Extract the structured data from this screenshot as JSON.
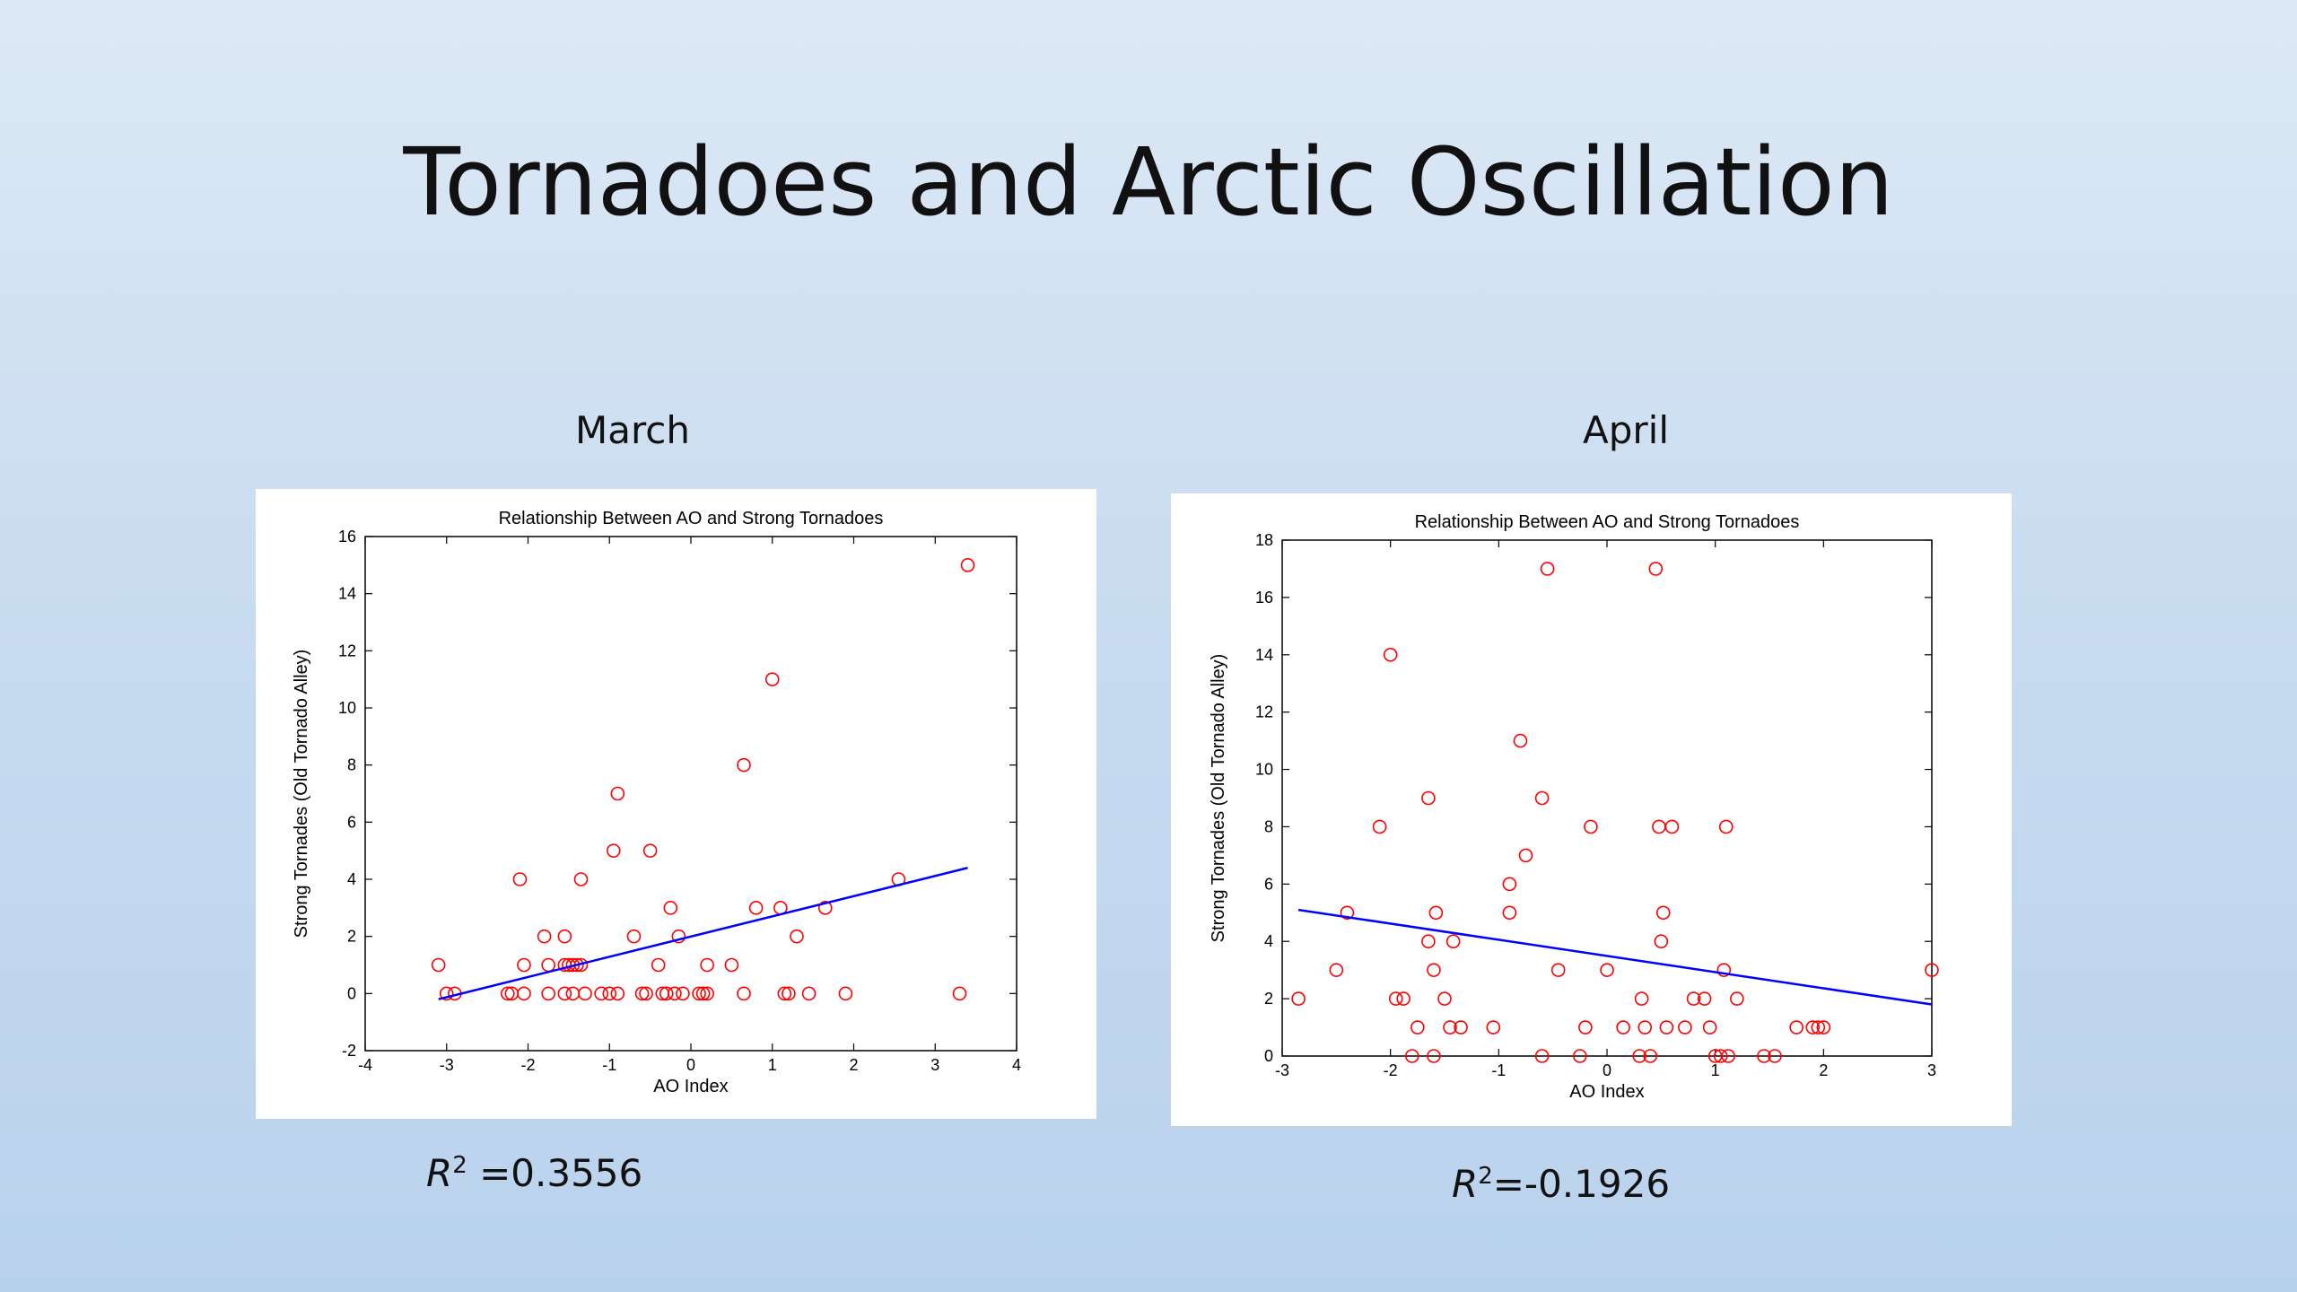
{
  "slide": {
    "title": "Tornadoes and Arctic Oscillation"
  },
  "panels": [
    {
      "label": "March",
      "r2_symbol": "R",
      "r2_exp": "2",
      "r2_value": "=0.3556"
    },
    {
      "label": "April",
      "r2_symbol": "R",
      "r2_exp": "2",
      "r2_value": "=-0.1926"
    }
  ],
  "colors": {
    "points": "#ff0000",
    "trend": "#0000ff",
    "axes": "#000000"
  },
  "chart_data": [
    {
      "type": "scatter",
      "title": "Relationship Between AO and Strong Tornadoes",
      "xlabel": "AO Index",
      "ylabel": "Strong Tornades (Old Tornado Alley)",
      "xlim": [
        -4,
        4
      ],
      "ylim": [
        -2,
        16
      ],
      "xticks": [
        -4,
        -3,
        -2,
        -1,
        0,
        1,
        2,
        3,
        4
      ],
      "yticks": [
        -2,
        0,
        2,
        4,
        6,
        8,
        10,
        12,
        14,
        16
      ],
      "grid": false,
      "series": [
        {
          "marker": "circle",
          "points": [
            [
              -3.1,
              1
            ],
            [
              -3.0,
              0
            ],
            [
              -2.9,
              0
            ],
            [
              -2.25,
              0
            ],
            [
              -2.2,
              0
            ],
            [
              -2.1,
              4
            ],
            [
              -2.05,
              0
            ],
            [
              -2.05,
              1
            ],
            [
              -1.8,
              2
            ],
            [
              -1.75,
              1
            ],
            [
              -1.75,
              0
            ],
            [
              -1.55,
              2
            ],
            [
              -1.55,
              1
            ],
            [
              -1.55,
              0
            ],
            [
              -1.5,
              1
            ],
            [
              -1.45,
              1
            ],
            [
              -1.45,
              0
            ],
            [
              -1.4,
              1
            ],
            [
              -1.35,
              4
            ],
            [
              -1.35,
              1
            ],
            [
              -1.3,
              0
            ],
            [
              -1.1,
              0
            ],
            [
              -1.0,
              0
            ],
            [
              -0.95,
              5
            ],
            [
              -0.9,
              7
            ],
            [
              -0.9,
              0
            ],
            [
              -0.7,
              2
            ],
            [
              -0.6,
              0
            ],
            [
              -0.55,
              0
            ],
            [
              -0.5,
              5
            ],
            [
              -0.4,
              1
            ],
            [
              -0.35,
              0
            ],
            [
              -0.3,
              0
            ],
            [
              -0.25,
              3
            ],
            [
              -0.2,
              0
            ],
            [
              -0.15,
              2
            ],
            [
              -0.1,
              0
            ],
            [
              0.1,
              0
            ],
            [
              0.15,
              0
            ],
            [
              0.2,
              0
            ],
            [
              0.2,
              1
            ],
            [
              0.5,
              1
            ],
            [
              0.65,
              8
            ],
            [
              0.65,
              0
            ],
            [
              0.8,
              3
            ],
            [
              1.0,
              11
            ],
            [
              1.1,
              3
            ],
            [
              1.15,
              0
            ],
            [
              1.2,
              0
            ],
            [
              1.3,
              2
            ],
            [
              1.45,
              0
            ],
            [
              1.65,
              3
            ],
            [
              1.9,
              0
            ],
            [
              2.55,
              4
            ],
            [
              3.3,
              0
            ],
            [
              3.4,
              15
            ]
          ]
        },
        {
          "name": "",
          "kind": "line",
          "points": [
            [
              -3.1,
              -0.2
            ],
            [
              3.4,
              4.4
            ]
          ]
        }
      ]
    },
    {
      "type": "scatter",
      "title": "Relationship Between AO and Strong Tornadoes",
      "xlabel": "AO Index",
      "ylabel": "Strong Tornades (Old Tornado Alley)",
      "xlim": [
        -3,
        3
      ],
      "ylim": [
        0,
        18
      ],
      "xticks": [
        -3,
        -2,
        -1,
        0,
        1,
        2,
        3
      ],
      "yticks": [
        0,
        2,
        4,
        6,
        8,
        10,
        12,
        14,
        16,
        18
      ],
      "grid": false,
      "series": [
        {
          "marker": "circle",
          "points": [
            [
              -2.85,
              2
            ],
            [
              -2.5,
              3
            ],
            [
              -2.4,
              5
            ],
            [
              -2.1,
              8
            ],
            [
              -2.0,
              14
            ],
            [
              -1.95,
              2
            ],
            [
              -1.88,
              2
            ],
            [
              -1.8,
              0
            ],
            [
              -1.75,
              1
            ],
            [
              -1.65,
              9
            ],
            [
              -1.65,
              4
            ],
            [
              -1.6,
              0
            ],
            [
              -1.6,
              3
            ],
            [
              -1.58,
              5
            ],
            [
              -1.5,
              2
            ],
            [
              -1.45,
              1
            ],
            [
              -1.42,
              4
            ],
            [
              -1.35,
              1
            ],
            [
              -1.05,
              1
            ],
            [
              -0.9,
              6
            ],
            [
              -0.9,
              5
            ],
            [
              -0.8,
              11
            ],
            [
              -0.75,
              7
            ],
            [
              -0.6,
              9
            ],
            [
              -0.6,
              0
            ],
            [
              -0.55,
              17
            ],
            [
              -0.45,
              3
            ],
            [
              -0.25,
              0
            ],
            [
              -0.2,
              1
            ],
            [
              -0.15,
              8
            ],
            [
              0.0,
              3
            ],
            [
              0.15,
              1
            ],
            [
              0.3,
              0
            ],
            [
              0.32,
              2
            ],
            [
              0.35,
              1
            ],
            [
              0.4,
              0
            ],
            [
              0.45,
              17
            ],
            [
              0.48,
              8
            ],
            [
              0.5,
              4
            ],
            [
              0.52,
              5
            ],
            [
              0.55,
              1
            ],
            [
              0.6,
              8
            ],
            [
              0.72,
              1
            ],
            [
              0.8,
              2
            ],
            [
              0.9,
              2
            ],
            [
              0.95,
              1
            ],
            [
              1.0,
              0
            ],
            [
              1.05,
              0
            ],
            [
              1.08,
              3
            ],
            [
              1.1,
              8
            ],
            [
              1.12,
              0
            ],
            [
              1.2,
              2
            ],
            [
              1.45,
              0
            ],
            [
              1.55,
              0
            ],
            [
              1.75,
              1
            ],
            [
              1.9,
              1
            ],
            [
              1.95,
              1
            ],
            [
              2.0,
              1
            ],
            [
              3.0,
              3
            ]
          ]
        },
        {
          "name": "",
          "kind": "line",
          "points": [
            [
              -2.85,
              5.1
            ],
            [
              3.0,
              1.8
            ]
          ]
        }
      ]
    }
  ]
}
